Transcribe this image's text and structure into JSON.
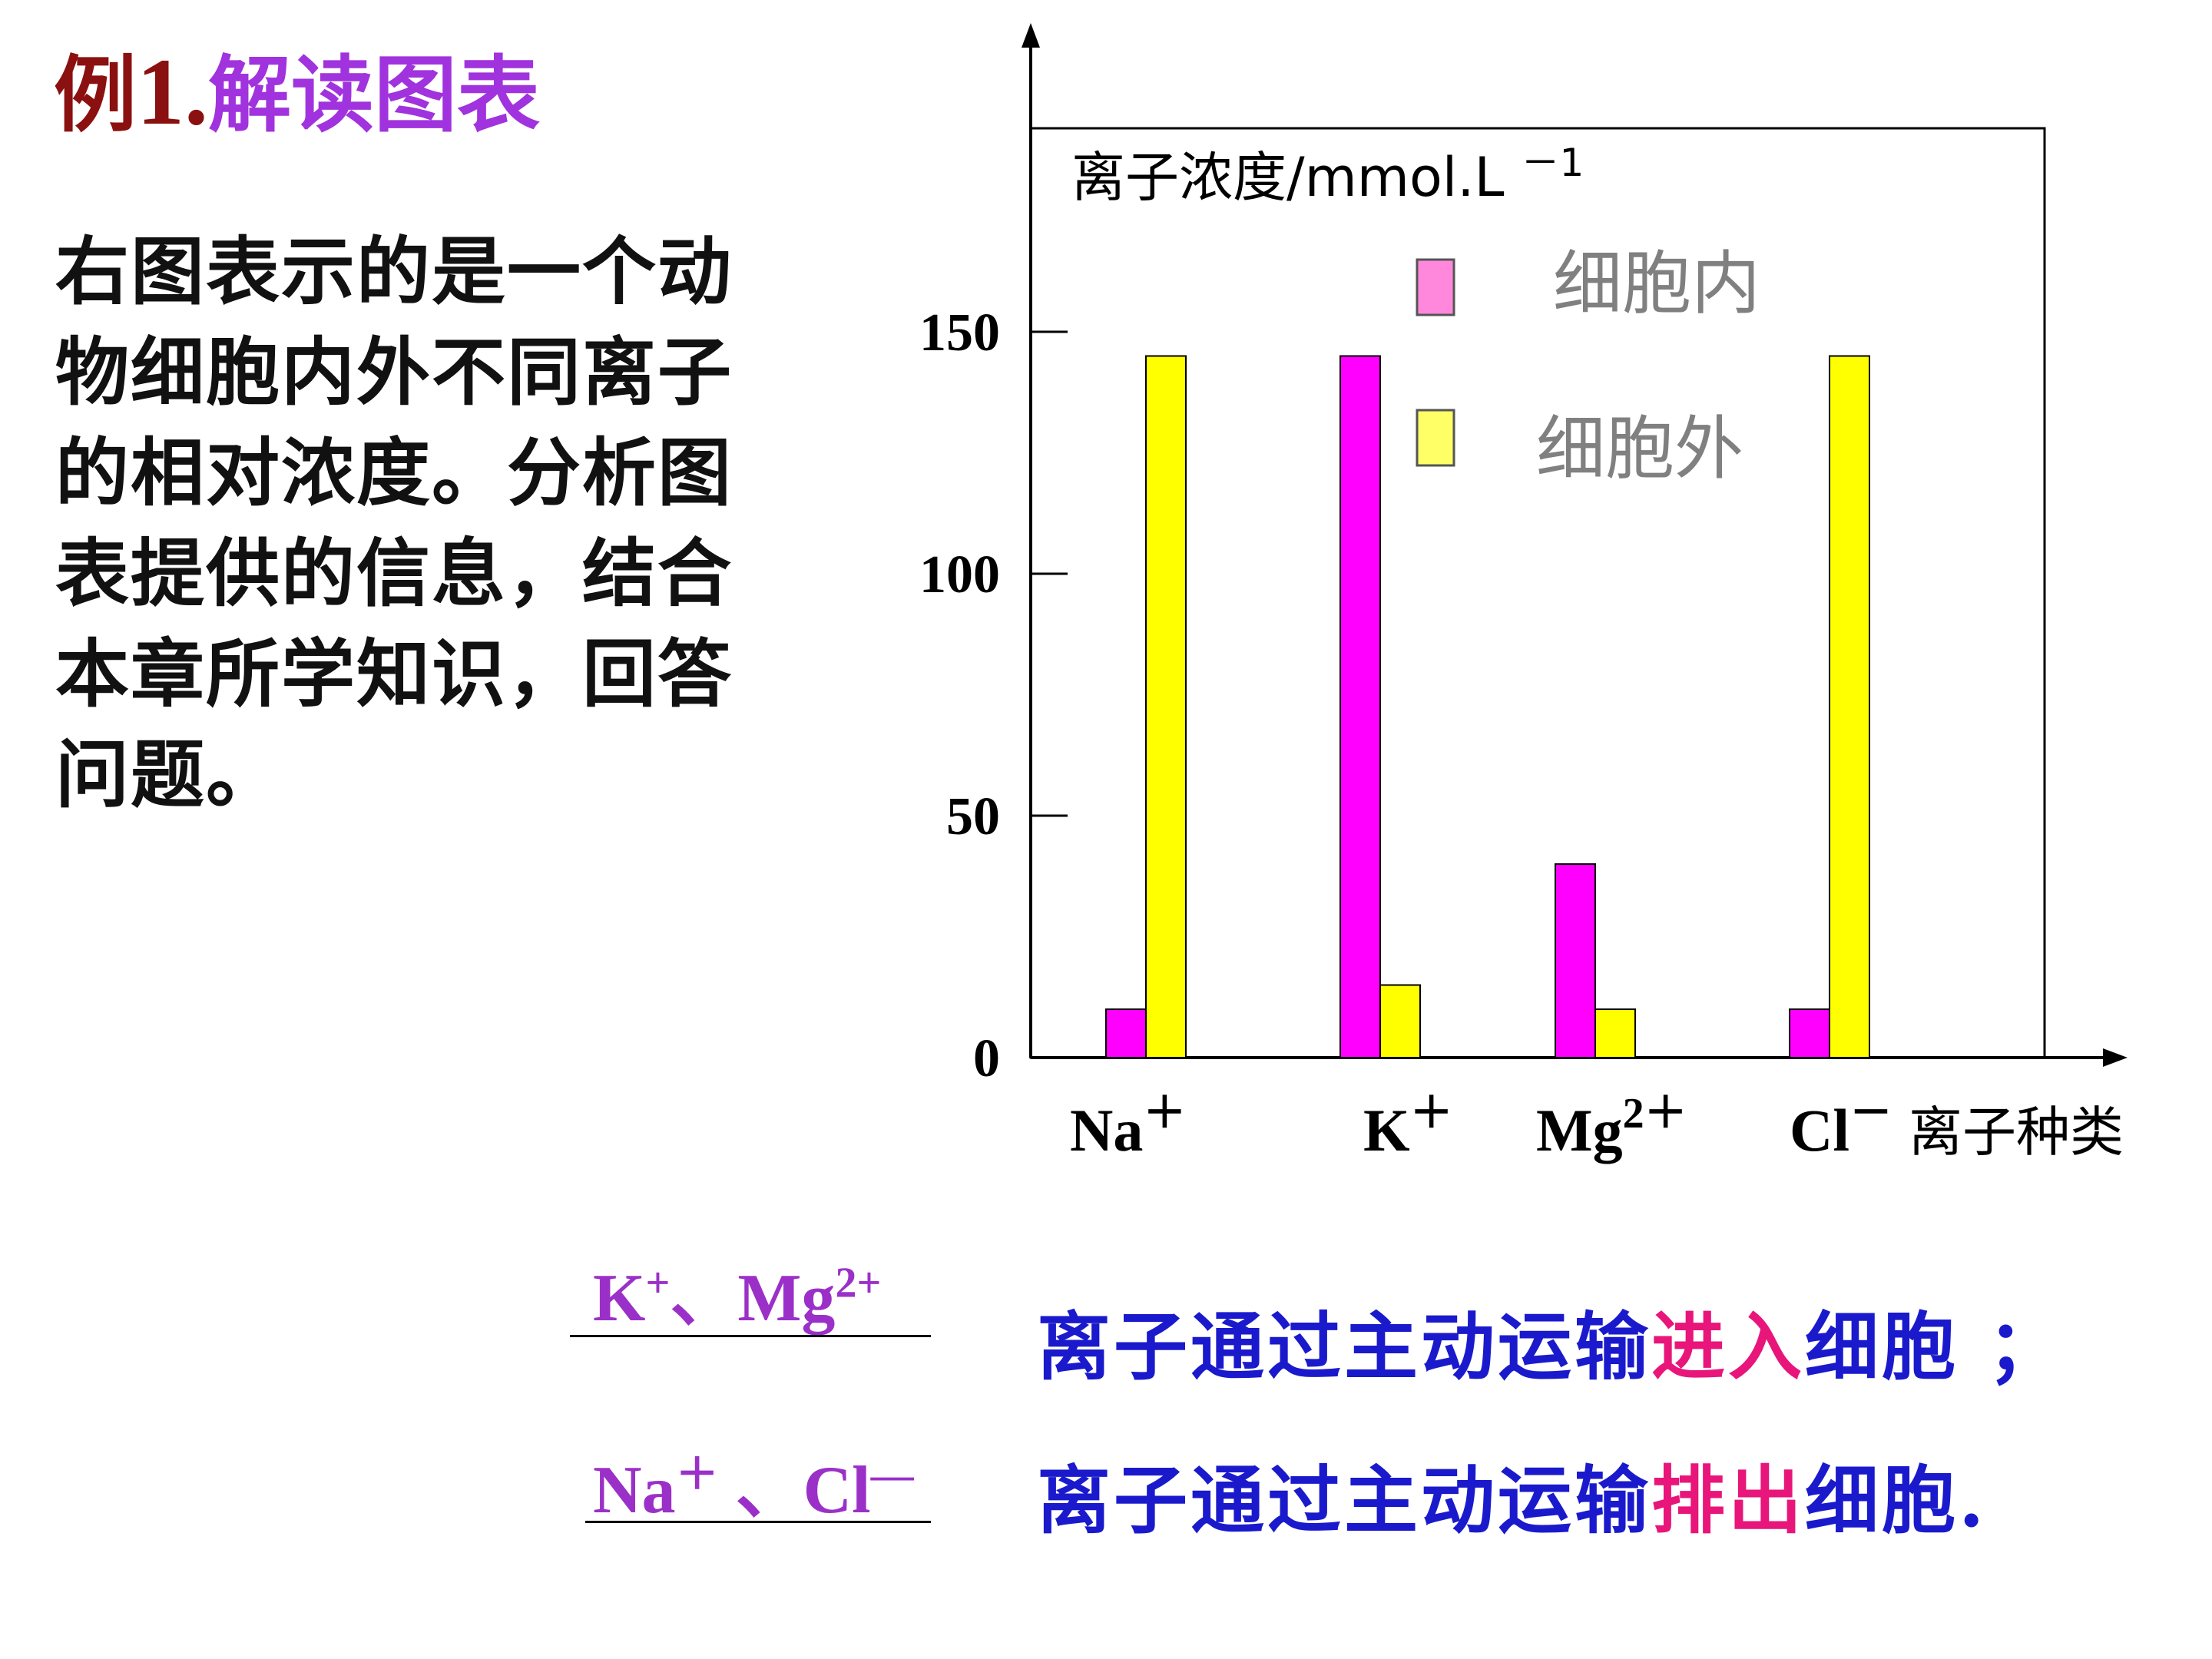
{
  "title": {
    "prefix": "例",
    "number": "1.",
    "text": "解读图表"
  },
  "description_lines": [
    "右图表示的是一个动",
    "物细胞内外不同离子",
    "的相对浓度。分析图",
    "表提供的信息，结合",
    "本章所学知识，回答",
    "问题。"
  ],
  "chart_data": {
    "type": "bar",
    "ylabel": "离子浓度/mmol.L",
    "ylabel_sup": "－1",
    "xlabel": "离子种类",
    "categories": [
      {
        "base": "Na",
        "sup": "＋"
      },
      {
        "base": "K",
        "sup": "＋"
      },
      {
        "base": "Mg",
        "sup": "2＋"
      },
      {
        "base": "Cl",
        "sup": "－"
      }
    ],
    "y_ticks": [
      0,
      50,
      100,
      150
    ],
    "ylim": [
      0,
      170
    ],
    "series": [
      {
        "name": "细胞内",
        "color": "#ff00ff",
        "values": [
          10,
          145,
          40,
          10
        ]
      },
      {
        "name": "细胞外",
        "color": "#ffff00",
        "values": [
          145,
          15,
          10,
          145
        ]
      }
    ],
    "legend_swatches": {
      "细胞内": "#ff88dd",
      "细胞外": "#ffff66"
    }
  },
  "answers": [
    {
      "blank_parts": [
        {
          "base": "K",
          "sup": "+"
        },
        {
          "base": "、Mg",
          "sup": "2+"
        }
      ],
      "before": "离子通过主动运输",
      "highlight": "进入",
      "after": "细胞 ；"
    },
    {
      "blank_parts": [
        {
          "base": "Na",
          "sup": "＋"
        },
        {
          "base": " 、Cl",
          "sup": "—"
        }
      ],
      "before": "离子通过主动运输",
      "highlight": "排出",
      "after": "细胞."
    }
  ],
  "colors": {
    "title_dark_red": "#8b1010",
    "title_purple": "#a033dd",
    "answer_purple": "#9b30c8",
    "conclusion_blue": "#1a1acc",
    "highlight_pink": "#e8157a"
  }
}
